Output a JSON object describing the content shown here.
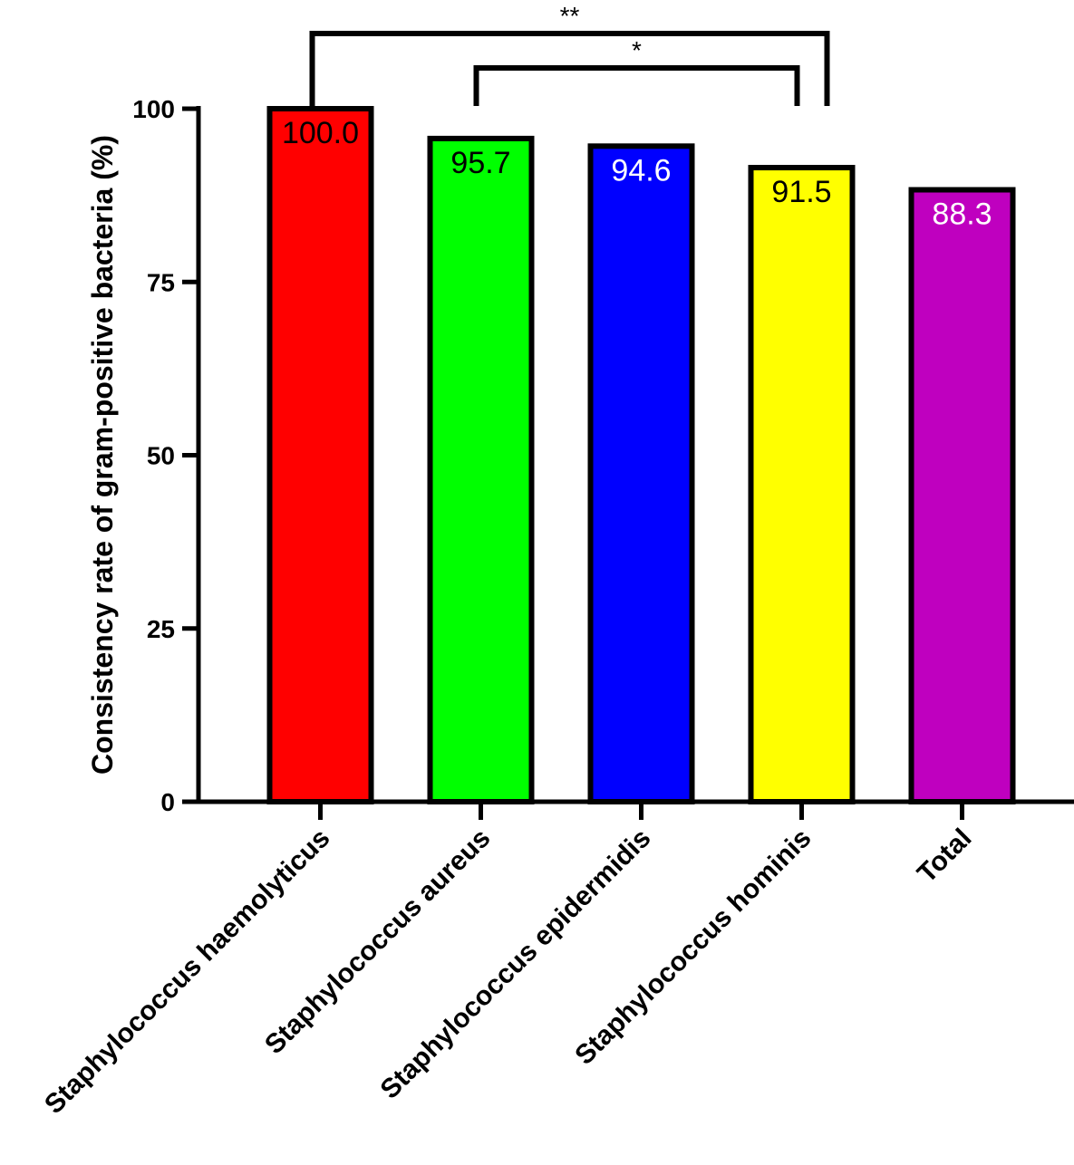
{
  "chart_data": {
    "type": "bar",
    "categories": [
      "Staphylococcus haemolyticus",
      "Staphylococcus aureus",
      "Staphylococcus epidermidis",
      "Staphylococcus hominis",
      "Total"
    ],
    "values": [
      100.0,
      95.7,
      94.6,
      91.5,
      88.3
    ],
    "value_labels": [
      "100.0",
      "95.7",
      "94.6",
      "91.5",
      "88.3"
    ],
    "colors": [
      "#ff0000",
      "#00ff00",
      "#0000ff",
      "#ffff00",
      "#bf00bf"
    ],
    "value_label_colors": [
      "#000000",
      "#000000",
      "#ffffff",
      "#000000",
      "#ffffff"
    ],
    "title": "",
    "xlabel": "",
    "ylabel": "Consistency rate of gram-positive bacteria (%)",
    "ylim": [
      0,
      100
    ],
    "yticks": [
      0,
      25,
      50,
      75,
      100
    ],
    "grid": false,
    "significance": [
      {
        "from": 0,
        "to": 3,
        "label": "**"
      },
      {
        "from": 1,
        "to": 3,
        "label": "*"
      }
    ]
  }
}
